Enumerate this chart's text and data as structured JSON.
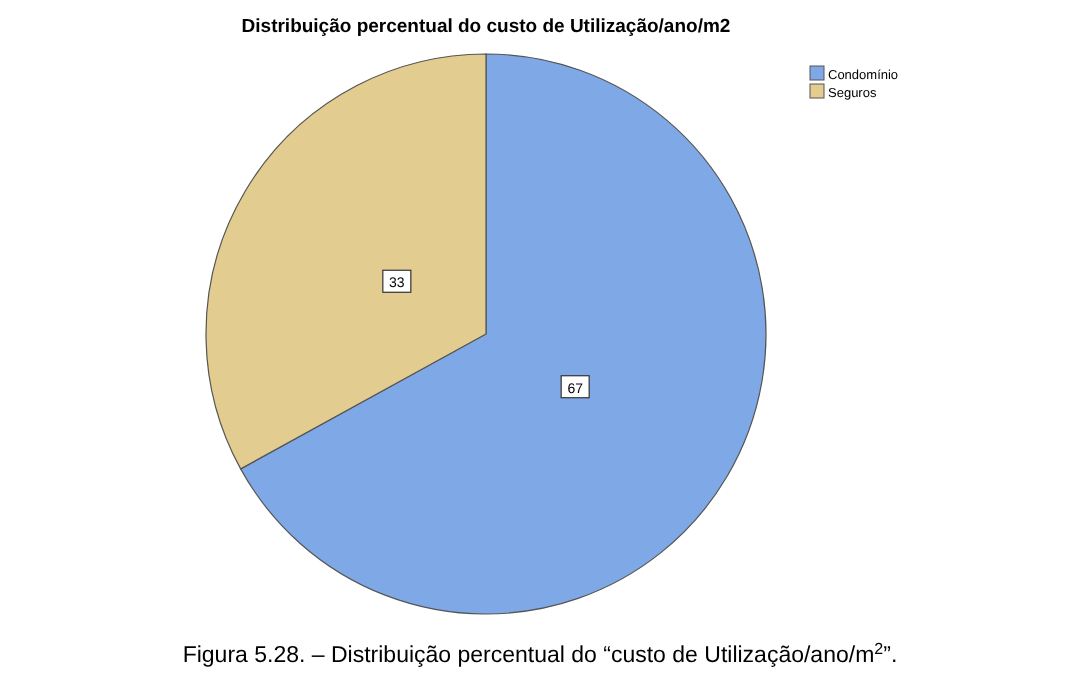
{
  "chart_data": {
    "type": "pie",
    "title": "Distribuição percentual do custo de Utilização/ano/m2",
    "categories": [
      "Condomínio",
      "Seguros"
    ],
    "values": [
      67,
      33
    ],
    "colors": [
      "#7fa9e6",
      "#e3cc8f"
    ],
    "data_labels": true,
    "legend": "top right",
    "annotations": [
      "Figura 5.28. – Distribuição percentual do “custo de Utilização/ano/m$^{2}$”."
    ]
  }
}
